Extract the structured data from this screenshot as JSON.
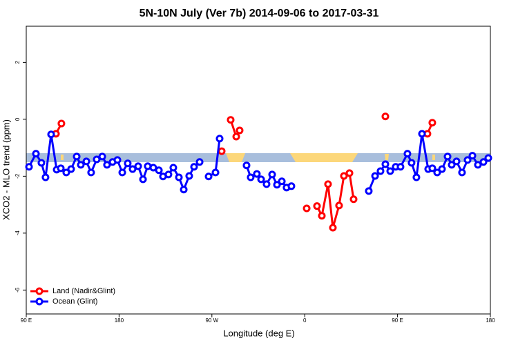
{
  "chart_data": {
    "type": "line",
    "title": "5N-10N July (Ver 7b)   2014-09-06 to 2017-03-31",
    "x_label": "Longitude (deg E)",
    "y_label": "XCO2 - MLO trend (ppm)",
    "xlim": [
      90,
      540
    ],
    "xticks": [
      {
        "value": 90,
        "label": "90 E"
      },
      180,
      {
        "value": 270,
        "label": "90 W"
      },
      {
        "value": 360,
        "label": "0"
      },
      {
        "value": 450,
        "label": "90 E"
      },
      {
        "value": 540,
        "label": "180"
      }
    ],
    "ylim": [
      -6.84,
      3.27
    ],
    "yticks": [
      -6,
      -4,
      -2,
      0,
      2
    ],
    "legend": "bottom-left",
    "series": [
      {
        "name": "Land (Nadir&Glint)",
        "color": "#ff0000",
        "x": [
          118.8,
          124.1,
          200,
          279.5,
          283,
          288.2,
          293.6,
          296.9,
          370,
          361.9,
          368,
          371.9,
          376.6,
          382.6,
          387.3,
          393.3,
          398.0,
          403.4,
          407.4,
          430,
          438.2,
          450,
          479.0,
          483.7
        ],
        "values": [
          -0.51,
          -0.15,
          null,
          -1.12,
          null,
          -0.02,
          -0.61,
          -0.39,
          null,
          -3.13,
          null,
          -3.05,
          -3.39,
          -2.28,
          -3.81,
          -3.03,
          -1.99,
          -1.89,
          -2.81,
          null,
          0.1,
          null,
          -0.51,
          -0.12
        ]
      },
      {
        "name": "Ocean (Glint)",
        "color": "#0000ff",
        "x": [
          92.7,
          99.4,
          104.7,
          108.7,
          114.1,
          119.5,
          123.5,
          128.8,
          133.5,
          138.9,
          142.9,
          148.3,
          152.9,
          158.3,
          163.7,
          168.3,
          173.7,
          178.4,
          183.1,
          188.4,
          193.1,
          198.5,
          203.2,
          207.8,
          213.2,
          218.6,
          222.6,
          227.9,
          232.6,
          238.0,
          242.7,
          248.0,
          252.7,
          258.1,
          264,
          266.8,
          273.5,
          277.5,
          290,
          303.6,
          307.6,
          313.6,
          317.7,
          323.0,
          328.4,
          333.1,
          337.8,
          342.4,
          347.1,
          400,
          422.1,
          428.2,
          433.5,
          438.2,
          442.9,
          448.2,
          452.9,
          459.6,
          463.6,
          468.3,
          473.7,
          479.7,
          483.7,
          488.4,
          493.1,
          498.5,
          502.5,
          507.2,
          512.5,
          517.9,
          522.6,
          527.9,
          533.3,
          538.0
        ],
        "values": [
          -1.67,
          -1.21,
          -1.53,
          -2.04,
          -0.53,
          -1.77,
          -1.72,
          -1.87,
          -1.75,
          -1.31,
          -1.6,
          -1.48,
          -1.87,
          -1.41,
          -1.31,
          -1.6,
          -1.5,
          -1.43,
          -1.87,
          -1.55,
          -1.75,
          -1.65,
          -2.11,
          -1.65,
          -1.7,
          -1.79,
          -2.01,
          -1.94,
          -1.7,
          -2.04,
          -2.47,
          -1.99,
          -1.67,
          -1.5,
          null,
          -2.01,
          -1.87,
          -0.68,
          null,
          -1.62,
          -2.04,
          -1.92,
          -2.11,
          -2.28,
          -1.94,
          -2.3,
          -2.18,
          -2.4,
          -2.35,
          null,
          -2.52,
          -1.99,
          -1.82,
          -1.58,
          -1.82,
          -1.67,
          -1.67,
          -1.21,
          -1.53,
          -2.04,
          -0.51,
          -1.75,
          -1.72,
          -1.87,
          -1.75,
          -1.31,
          -1.6,
          -1.48,
          -1.87,
          -1.43,
          -1.28,
          -1.6,
          -1.5,
          -1.36
        ]
      }
    ]
  }
}
